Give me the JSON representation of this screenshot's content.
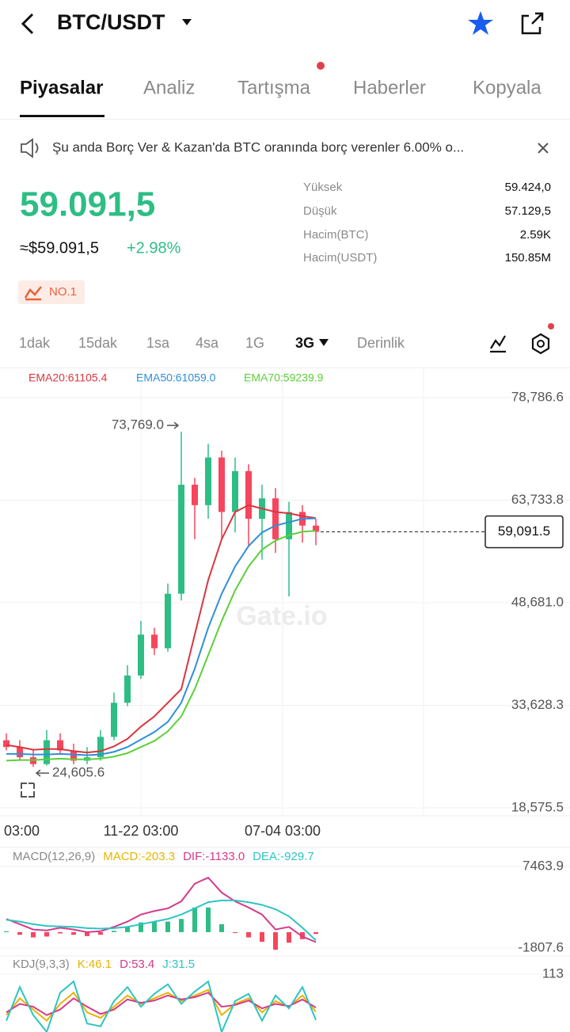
{
  "header": {
    "title": "BTC/USDT"
  },
  "tabs": [
    "Piyasalar",
    "Analiz",
    "Tartışma",
    "Haberler",
    "Kopyala"
  ],
  "notice": "Şu anda Borç Ver & Kazan'da BTC oranında borç verenler 6.00% o...",
  "price": {
    "last": "59.091,5",
    "fiat": "≈$59.091,5",
    "change": "+2.98%",
    "rank": "NO.1"
  },
  "stats": [
    {
      "label": "Yüksek",
      "value": "59.424,0"
    },
    {
      "label": "Düşük",
      "value": "57.129,5"
    },
    {
      "label": "Hacim(BTC)",
      "value": "2.59K"
    },
    {
      "label": "Hacim(USDT)",
      "value": "150.85M"
    }
  ],
  "intervals": [
    "1dak",
    "15dak",
    "1sa",
    "4sa",
    "1G",
    "3G",
    "Derinlik"
  ],
  "watermark": "Gate.io",
  "time_labels": [
    "03:00",
    "11-22 03:00",
    "07-04 03:00"
  ],
  "chart_data": [
    {
      "type": "candlestick",
      "up_color": "#2ebd85",
      "down_color": "#f6465d",
      "open": [
        28500,
        27500,
        26000,
        25000,
        28500,
        27000,
        25500,
        26000,
        29000,
        34000,
        38000,
        44000,
        42000,
        50000,
        66000,
        63000,
        70000,
        62000,
        68000,
        61000,
        64000,
        58000,
        62000,
        60000
      ],
      "high": [
        29500,
        28500,
        27000,
        30000,
        29500,
        28000,
        27500,
        30000,
        35500,
        39500,
        46000,
        45000,
        51500,
        73769.0,
        67000,
        72000,
        71000,
        70000,
        69000,
        66000,
        65500,
        63500,
        63000,
        61000
      ],
      "low": [
        27000,
        25500,
        24605.6,
        24800,
        26500,
        25000,
        25000,
        25500,
        28500,
        33500,
        37500,
        41000,
        41500,
        49000,
        58000,
        61000,
        58000,
        59000,
        57000,
        55000,
        56000,
        49600,
        57500,
        57129.5
      ],
      "close": [
        27500,
        26000,
        25000,
        28500,
        27000,
        25500,
        26000,
        29000,
        34000,
        38000,
        44000,
        42000,
        50000,
        66000,
        63000,
        70000,
        62000,
        68000,
        61000,
        64000,
        58000,
        62000,
        60000,
        59091.5
      ],
      "series": [
        {
          "name": "EMA20:61105.4",
          "color": "#d9363e",
          "values": [
            27800,
            27500,
            27100,
            27200,
            27200,
            26900,
            26700,
            26900,
            27600,
            28700,
            30500,
            32000,
            34000,
            36000,
            44000,
            52000,
            58000,
            62000,
            63000,
            62500,
            62000,
            61800,
            61400,
            61105.4
          ]
        },
        {
          "name": "EMA50:61059.0",
          "color": "#2f8fd8",
          "values": [
            26500,
            26500,
            26400,
            26400,
            26500,
            26400,
            26300,
            26400,
            26800,
            27500,
            28600,
            29700,
            31200,
            34000,
            39000,
            45000,
            50000,
            54000,
            57000,
            59000,
            60000,
            60500,
            61000,
            61059.0
          ]
        },
        {
          "name": "EMA70:59239.9",
          "color": "#5ccf3a",
          "values": [
            25500,
            25600,
            25600,
            25700,
            25800,
            25700,
            25700,
            25800,
            26100,
            26600,
            27500,
            28400,
            29800,
            32000,
            36000,
            41000,
            46000,
            50500,
            54000,
            56500,
            57800,
            58600,
            59100,
            59239.9
          ]
        }
      ],
      "ylim": [
        18575.5,
        78786.6
      ],
      "yticks": [
        {
          "value": 78786.6,
          "label": "78,786.6"
        },
        {
          "value": 63733.8,
          "label": "63,733.8"
        },
        {
          "value": 48681.0,
          "label": "48,681.0"
        },
        {
          "value": 33628.3,
          "label": "33,628.3"
        },
        {
          "value": 18575.5,
          "label": "18,575.5"
        }
      ],
      "last_price": {
        "value": 59091.5,
        "label": "59,091.5"
      },
      "max_marker": {
        "value": 73769.0,
        "label": "73,769.0"
      },
      "min_marker": {
        "value": 24605.6,
        "label": "24,605.6"
      }
    },
    {
      "type": "macd",
      "title": "MACD(12,26,9)",
      "up_color": "#2ebd85",
      "down_color": "#f6465d",
      "histogram": {
        "name": "MACD:-203.3",
        "color": "#e8b400",
        "values": [
          100,
          -300,
          -600,
          -500,
          -150,
          -300,
          -450,
          -300,
          150,
          600,
          1100,
          1200,
          1200,
          1500,
          2800,
          2800,
          900,
          -100,
          -600,
          -1100,
          -2000,
          -1200,
          -800,
          -203.3
        ]
      },
      "series": [
        {
          "name": "DIF:-1133.0",
          "color": "#d63a8a",
          "values": [
            1500,
            900,
            300,
            200,
            500,
            300,
            0,
            100,
            600,
            1200,
            2000,
            2400,
            2700,
            3500,
            5500,
            6200,
            4500,
            3500,
            2800,
            2000,
            300,
            600,
            -500,
            -1133.0
          ]
        },
        {
          "name": "DEA:-929.7",
          "color": "#2ec4c4",
          "values": [
            1400,
            1200,
            900,
            700,
            650,
            600,
            450,
            400,
            450,
            600,
            900,
            1200,
            1500,
            2000,
            2700,
            3400,
            3600,
            3600,
            3400,
            3100,
            2600,
            1800,
            500,
            -929.7
          ]
        }
      ],
      "ylim": [
        -1807.6,
        7463.9
      ],
      "yticks": [
        7463.9,
        -1807.6
      ]
    },
    {
      "type": "line",
      "title": "KDJ(9,3,3)",
      "series": [
        {
          "name": "K:46.1",
          "color": "#e8b400",
          "values": [
            40,
            70,
            50,
            30,
            60,
            80,
            45,
            35,
            55,
            75,
            60,
            70,
            80,
            65,
            75,
            85,
            40,
            60,
            70,
            45,
            65,
            55,
            75,
            46.1
          ]
        },
        {
          "name": "D:53.4",
          "color": "#d63a8a",
          "values": [
            45,
            60,
            55,
            40,
            50,
            70,
            55,
            42,
            50,
            68,
            62,
            66,
            75,
            68,
            72,
            80,
            55,
            58,
            66,
            52,
            60,
            56,
            68,
            53.4
          ]
        },
        {
          "name": "J:31.5",
          "color": "#2ec4c4",
          "values": [
            30,
            90,
            40,
            10,
            80,
            100,
            25,
            20,
            65,
            90,
            55,
            78,
            95,
            60,
            82,
            100,
            10,
            65,
            78,
            30,
            75,
            52,
            90,
            31.5
          ]
        }
      ],
      "ylim": [
        0,
        113.0
      ],
      "yticks": [
        113.0
      ]
    }
  ]
}
